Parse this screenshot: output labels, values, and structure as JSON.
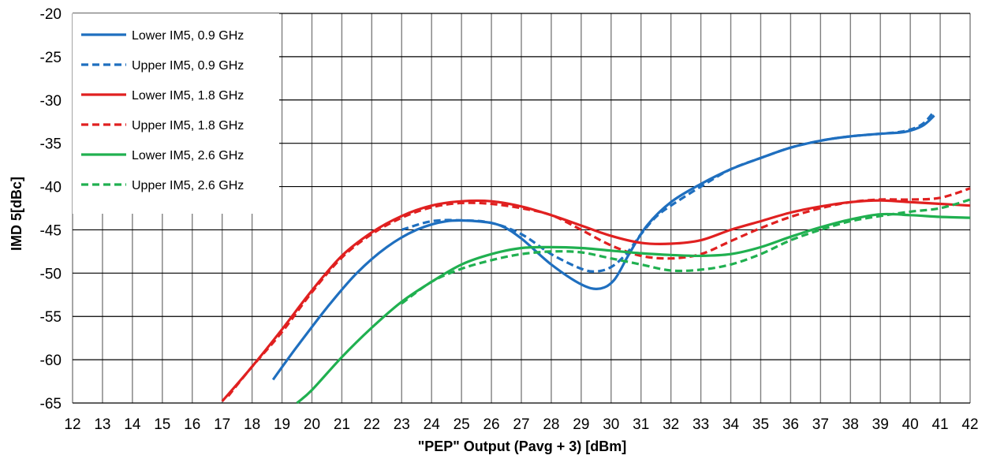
{
  "chart_data": {
    "type": "line",
    "title": "",
    "xlabel": "\"PEP\" Output (Pavg + 3) [dBm]",
    "ylabel": "IMD 5[dBc]",
    "xlim": [
      12,
      42
    ],
    "ylim": [
      -65,
      -20
    ],
    "x_ticks": [
      "12",
      "13",
      "14",
      "15",
      "16",
      "17",
      "18",
      "19",
      "20",
      "21",
      "22",
      "23",
      "24",
      "25",
      "26",
      "27",
      "28",
      "29",
      "30",
      "31",
      "32",
      "33",
      "34",
      "35",
      "36",
      "37",
      "38",
      "39",
      "40",
      "41",
      "42"
    ],
    "y_ticks": [
      "-20",
      "-25",
      "-30",
      "-35",
      "-40",
      "-45",
      "-50",
      "-55",
      "-60",
      "-65"
    ],
    "grid": true,
    "legend_position": "top-left",
    "series": [
      {
        "name": "Lower IM5, 0.9 GHz",
        "color": "#1f6fbf",
        "dash": "solid",
        "x": [
          18.7,
          19.5,
          20.5,
          21.5,
          22.5,
          23.5,
          24.5,
          25.5,
          26.3,
          27.0,
          28.0,
          29.0,
          29.6,
          30.1,
          30.6,
          31.2,
          32.0,
          33.0,
          34.0,
          35.0,
          36.0,
          37.0,
          38.0,
          39.0,
          39.8,
          40.4,
          40.8
        ],
        "y": [
          -62.3,
          -58.5,
          -54.0,
          -50.0,
          -47.0,
          -45.0,
          -44.0,
          -44.0,
          -44.5,
          -46.0,
          -49.0,
          -51.3,
          -51.8,
          -50.8,
          -47.8,
          -44.5,
          -41.8,
          -39.7,
          -38.0,
          -36.7,
          -35.5,
          -34.7,
          -34.2,
          -33.9,
          -33.7,
          -33.0,
          -31.8
        ]
      },
      {
        "name": "Upper IM5, 0.9 GHz",
        "color": "#1f6fbf",
        "dash": "dashed",
        "x": [
          23.0,
          24.0,
          25.0,
          26.0,
          27.0,
          28.0,
          29.0,
          29.5,
          30.0,
          30.5,
          31.0,
          31.5,
          32.0,
          33.0,
          34.0,
          35.0,
          36.0,
          37.0,
          38.0,
          39.0,
          39.8,
          40.4,
          40.8
        ],
        "y": [
          -45.0,
          -44.0,
          -43.9,
          -44.2,
          -45.5,
          -47.8,
          -49.5,
          -49.8,
          -49.3,
          -47.8,
          -45.5,
          -43.5,
          -42.2,
          -40.0,
          -38.0,
          -36.7,
          -35.5,
          -34.7,
          -34.2,
          -33.9,
          -33.6,
          -32.8,
          -31.3
        ]
      },
      {
        "name": "Lower IM5, 1.8 GHz",
        "color": "#e02020",
        "dash": "solid",
        "x": [
          17.0,
          18.0,
          19.0,
          20.0,
          21.0,
          22.0,
          23.0,
          24.0,
          25.0,
          26.0,
          27.0,
          28.0,
          29.0,
          30.0,
          31.0,
          32.0,
          33.0,
          34.0,
          35.0,
          36.0,
          37.0,
          38.0,
          39.0,
          40.0,
          41.0,
          42.0
        ],
        "y": [
          -64.8,
          -60.8,
          -56.5,
          -52.0,
          -48.0,
          -45.3,
          -43.4,
          -42.2,
          -41.7,
          -41.7,
          -42.3,
          -43.3,
          -44.5,
          -45.7,
          -46.5,
          -46.6,
          -46.2,
          -45.0,
          -44.0,
          -43.0,
          -42.3,
          -41.8,
          -41.6,
          -41.8,
          -42.0,
          -42.2
        ]
      },
      {
        "name": "Upper IM5, 1.8 GHz",
        "color": "#e02020",
        "dash": "dashed",
        "x": [
          17.2,
          18.0,
          19.0,
          20.0,
          21.0,
          22.0,
          23.0,
          24.0,
          25.0,
          26.0,
          27.0,
          28.0,
          29.0,
          30.0,
          31.0,
          32.0,
          33.0,
          34.0,
          35.0,
          36.0,
          37.0,
          38.0,
          39.0,
          40.0,
          41.0,
          42.0
        ],
        "y": [
          -64.2,
          -60.8,
          -56.8,
          -52.2,
          -48.2,
          -45.5,
          -43.6,
          -42.4,
          -41.9,
          -42.0,
          -42.5,
          -43.3,
          -45.0,
          -46.8,
          -48.0,
          -48.3,
          -47.8,
          -46.3,
          -44.8,
          -43.5,
          -42.5,
          -41.8,
          -41.5,
          -41.5,
          -41.3,
          -40.2
        ]
      },
      {
        "name": "Lower IM5, 2.6 GHz",
        "color": "#20b050",
        "dash": "solid",
        "x": [
          19.5,
          20.0,
          21.0,
          22.0,
          23.0,
          24.0,
          25.0,
          26.0,
          27.0,
          28.0,
          29.0,
          30.0,
          31.0,
          32.0,
          33.0,
          34.0,
          35.0,
          36.0,
          37.0,
          38.0,
          39.0,
          40.0,
          41.0,
          42.0
        ],
        "y": [
          -65.0,
          -63.5,
          -59.7,
          -56.3,
          -53.3,
          -51.0,
          -49.0,
          -47.8,
          -47.1,
          -47.0,
          -47.1,
          -47.4,
          -47.7,
          -47.9,
          -48.0,
          -47.8,
          -47.0,
          -45.8,
          -44.7,
          -43.8,
          -43.2,
          -43.3,
          -43.5,
          -43.6
        ]
      },
      {
        "name": "Upper IM5, 2.6 GHz",
        "color": "#20b050",
        "dash": "dashed",
        "x": [
          23.0,
          24.0,
          25.0,
          26.0,
          27.0,
          28.0,
          29.0,
          30.0,
          31.0,
          32.0,
          33.0,
          34.0,
          35.0,
          36.0,
          37.0,
          38.0,
          39.0,
          40.0,
          41.0,
          42.0
        ],
        "y": [
          -53.5,
          -51.0,
          -49.5,
          -48.5,
          -47.8,
          -47.5,
          -47.6,
          -48.3,
          -49.0,
          -49.7,
          -49.6,
          -49.0,
          -47.8,
          -46.2,
          -45.0,
          -44.0,
          -43.4,
          -42.9,
          -42.5,
          -41.5
        ]
      }
    ]
  }
}
